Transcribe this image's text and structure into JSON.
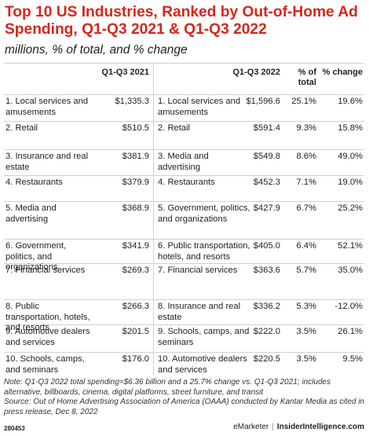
{
  "title": "Top 10 US Industries, Ranked by Out-of-Home Ad Spending, Q1-Q3 2021 & Q1-Q3 2022",
  "subtitle": "millions, % of total, and % change",
  "chart_data": {
    "type": "table",
    "left_table": {
      "header": "Q1-Q3 2021",
      "rows": [
        {
          "industry": "1. Local services and amusements",
          "value": "$1,335.3"
        },
        {
          "industry": "2. Retail",
          "value": "$510.5"
        },
        {
          "industry": "3. Insurance and real estate",
          "value": "$381.9"
        },
        {
          "industry": "4. Restaurants",
          "value": "$379.9"
        },
        {
          "industry": "5. Media and advertising",
          "value": "$368.9"
        },
        {
          "industry": "6. Government, politics, and organizations",
          "value": "$341.9"
        },
        {
          "industry": "7. Financial services",
          "value": "$269.3"
        },
        {
          "industry": "8. Public transportation, hotels, and resorts",
          "value": "$266.3"
        },
        {
          "industry": "9. Automotive dealers and services",
          "value": "$201.5"
        },
        {
          "industry": "10. Schools, camps, and seminars",
          "value": "$176.0"
        }
      ]
    },
    "right_table": {
      "headers": [
        "Q1-Q3 2022",
        "% of total",
        "% change"
      ],
      "rows": [
        {
          "industry": "1. Local services and amusements",
          "value": "$1,596.6",
          "pct_total": "25.1%",
          "pct_change": "19.6%"
        },
        {
          "industry": "2. Retail",
          "value": "$591.4",
          "pct_total": "9.3%",
          "pct_change": "15.8%"
        },
        {
          "industry": "3. Media and advertising",
          "value": "$549.8",
          "pct_total": "8.6%",
          "pct_change": "49.0%"
        },
        {
          "industry": "4. Restaurants",
          "value": "$452.3",
          "pct_total": "7.1%",
          "pct_change": "19.0%"
        },
        {
          "industry": "5. Government, politics, and organizations",
          "value": "$427.9",
          "pct_total": "6.7%",
          "pct_change": "25.2%"
        },
        {
          "industry": "6. Public transportation, hotels, and resorts",
          "value": "$405.0",
          "pct_total": "6.4%",
          "pct_change": "52.1%"
        },
        {
          "industry": "7. Financial services",
          "value": "$363.6",
          "pct_total": "5.7%",
          "pct_change": "35.0%"
        },
        {
          "industry": "8. Insurance and real estate",
          "value": "$336.2",
          "pct_total": "5.3%",
          "pct_change": "-12.0%"
        },
        {
          "industry": "9. Schools, camps, and seminars",
          "value": "$222.0",
          "pct_total": "3.5%",
          "pct_change": "26.1%"
        },
        {
          "industry": "10. Automotive dealers and services",
          "value": "$220.5",
          "pct_total": "3.5%",
          "pct_change": "9.5%"
        }
      ]
    }
  },
  "note": "Note: Q1-Q3 2022 total spending=$6.36 billion and a 25.7% change vs. Q1-Q3 2021; includes alternative, billboards, cinema, digital platforms, street furniture, and transit\nSource: Out of Home Advertising Association of America (OAAA) conducted by Kantar Media as cited in press release, Dec 8, 2022",
  "footer": {
    "id": "280453",
    "brand_1": "eMarketer",
    "brand_2": "InsiderIntelligence.com"
  },
  "colors": {
    "title": "#d7261b",
    "rule": "#d0d0d0"
  }
}
